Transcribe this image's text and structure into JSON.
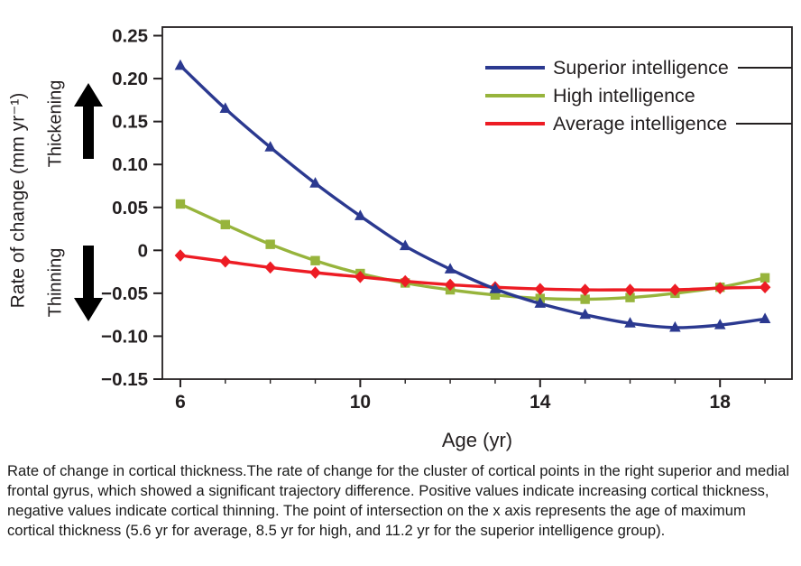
{
  "figure": {
    "y_axis_label": "Rate of change (mm yr⁻¹)",
    "thickening_label": "Thickening",
    "thinning_label": "Thinning",
    "x_axis_label": "Age (yr)"
  },
  "caption": "Rate of change in cortical thickness.The rate of change for the cluster of cortical points in the right superior and medial frontal gyrus, which showed a significant trajectory difference. Positive values indicate increasing cortical thickness, negative values indicate cortical thinning. The point of intersection on the x axis represents the age of maximum cortical thickness (5.6 yr for average, 8.5 yr for high, and 11.2 yr for the superior intelligence group).",
  "chart_data": {
    "type": "line",
    "title": "",
    "xlabel": "Age (yr)",
    "ylabel": "Rate of change (mm yr⁻¹)",
    "xlim": [
      5.6,
      19.6
    ],
    "ylim": [
      -0.15,
      0.26
    ],
    "grid": false,
    "legend_position": "top-right",
    "x_ticks": [
      6,
      10,
      14,
      18
    ],
    "x_minor_ticks": [
      6,
      7,
      8,
      9,
      10,
      11,
      12,
      13,
      14,
      15,
      16,
      17,
      18,
      19
    ],
    "y_tick_values": [
      0.25,
      0.2,
      0.15,
      0.1,
      0.05,
      0,
      -0.05,
      -0.1,
      -0.15
    ],
    "y_tick_labels": [
      "0.25",
      "0.20",
      "0.15",
      "0.10",
      "0.05",
      "0",
      "−0.05",
      "−0.10",
      "−0.15"
    ],
    "x": [
      6,
      7,
      8,
      9,
      10,
      11,
      12,
      13,
      14,
      15,
      16,
      17,
      18,
      19
    ],
    "series": [
      {
        "name": "Superior intelligence",
        "color": "#2b3990",
        "marker": "triangle",
        "values": [
          0.215,
          0.165,
          0.12,
          0.078,
          0.04,
          0.005,
          -0.022,
          -0.045,
          -0.062,
          -0.075,
          -0.085,
          -0.09,
          -0.087,
          -0.08
        ]
      },
      {
        "name": "High intelligence",
        "color": "#97b43c",
        "marker": "square",
        "values": [
          0.054,
          0.03,
          0.007,
          -0.012,
          -0.027,
          -0.038,
          -0.046,
          -0.052,
          -0.056,
          -0.057,
          -0.055,
          -0.05,
          -0.043,
          -0.032
        ]
      },
      {
        "name": "Average intelligence",
        "color": "#ed1c24",
        "marker": "diamond",
        "values": [
          -0.006,
          -0.013,
          -0.02,
          -0.026,
          -0.031,
          -0.036,
          -0.04,
          -0.043,
          -0.045,
          -0.046,
          -0.046,
          -0.046,
          -0.044,
          -0.043
        ]
      }
    ]
  }
}
